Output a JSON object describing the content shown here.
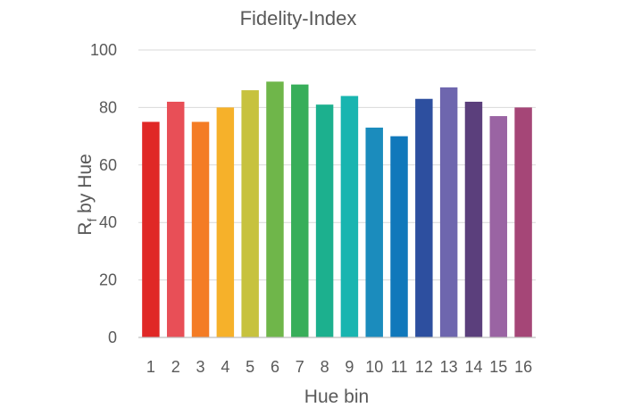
{
  "chart_data": {
    "type": "bar",
    "title": "Fidelity-Index",
    "xlabel": "Hue bin",
    "ylabel_main": "R",
    "ylabel_sub": "f",
    "ylabel_rest": " by Hue",
    "categories": [
      "1",
      "2",
      "3",
      "4",
      "5",
      "6",
      "7",
      "8",
      "9",
      "10",
      "11",
      "12",
      "13",
      "14",
      "15",
      "16"
    ],
    "values": [
      75,
      82,
      75,
      80,
      86,
      89,
      88,
      81,
      84,
      73,
      70,
      83,
      87,
      82,
      77,
      80
    ],
    "ylim": [
      0,
      100
    ],
    "yticks": [
      0,
      20,
      40,
      60,
      80,
      100
    ],
    "grid": true,
    "legend": "none",
    "colors": [
      "#e02826",
      "#e84f57",
      "#f47c25",
      "#f6b12a",
      "#c7c23e",
      "#6fb64a",
      "#38ae5a",
      "#1cb08e",
      "#19b5b0",
      "#1b8cbd",
      "#1078bb",
      "#2d4f9f",
      "#6e66ae",
      "#5b3f7c",
      "#9a64a3",
      "#a54677"
    ]
  }
}
